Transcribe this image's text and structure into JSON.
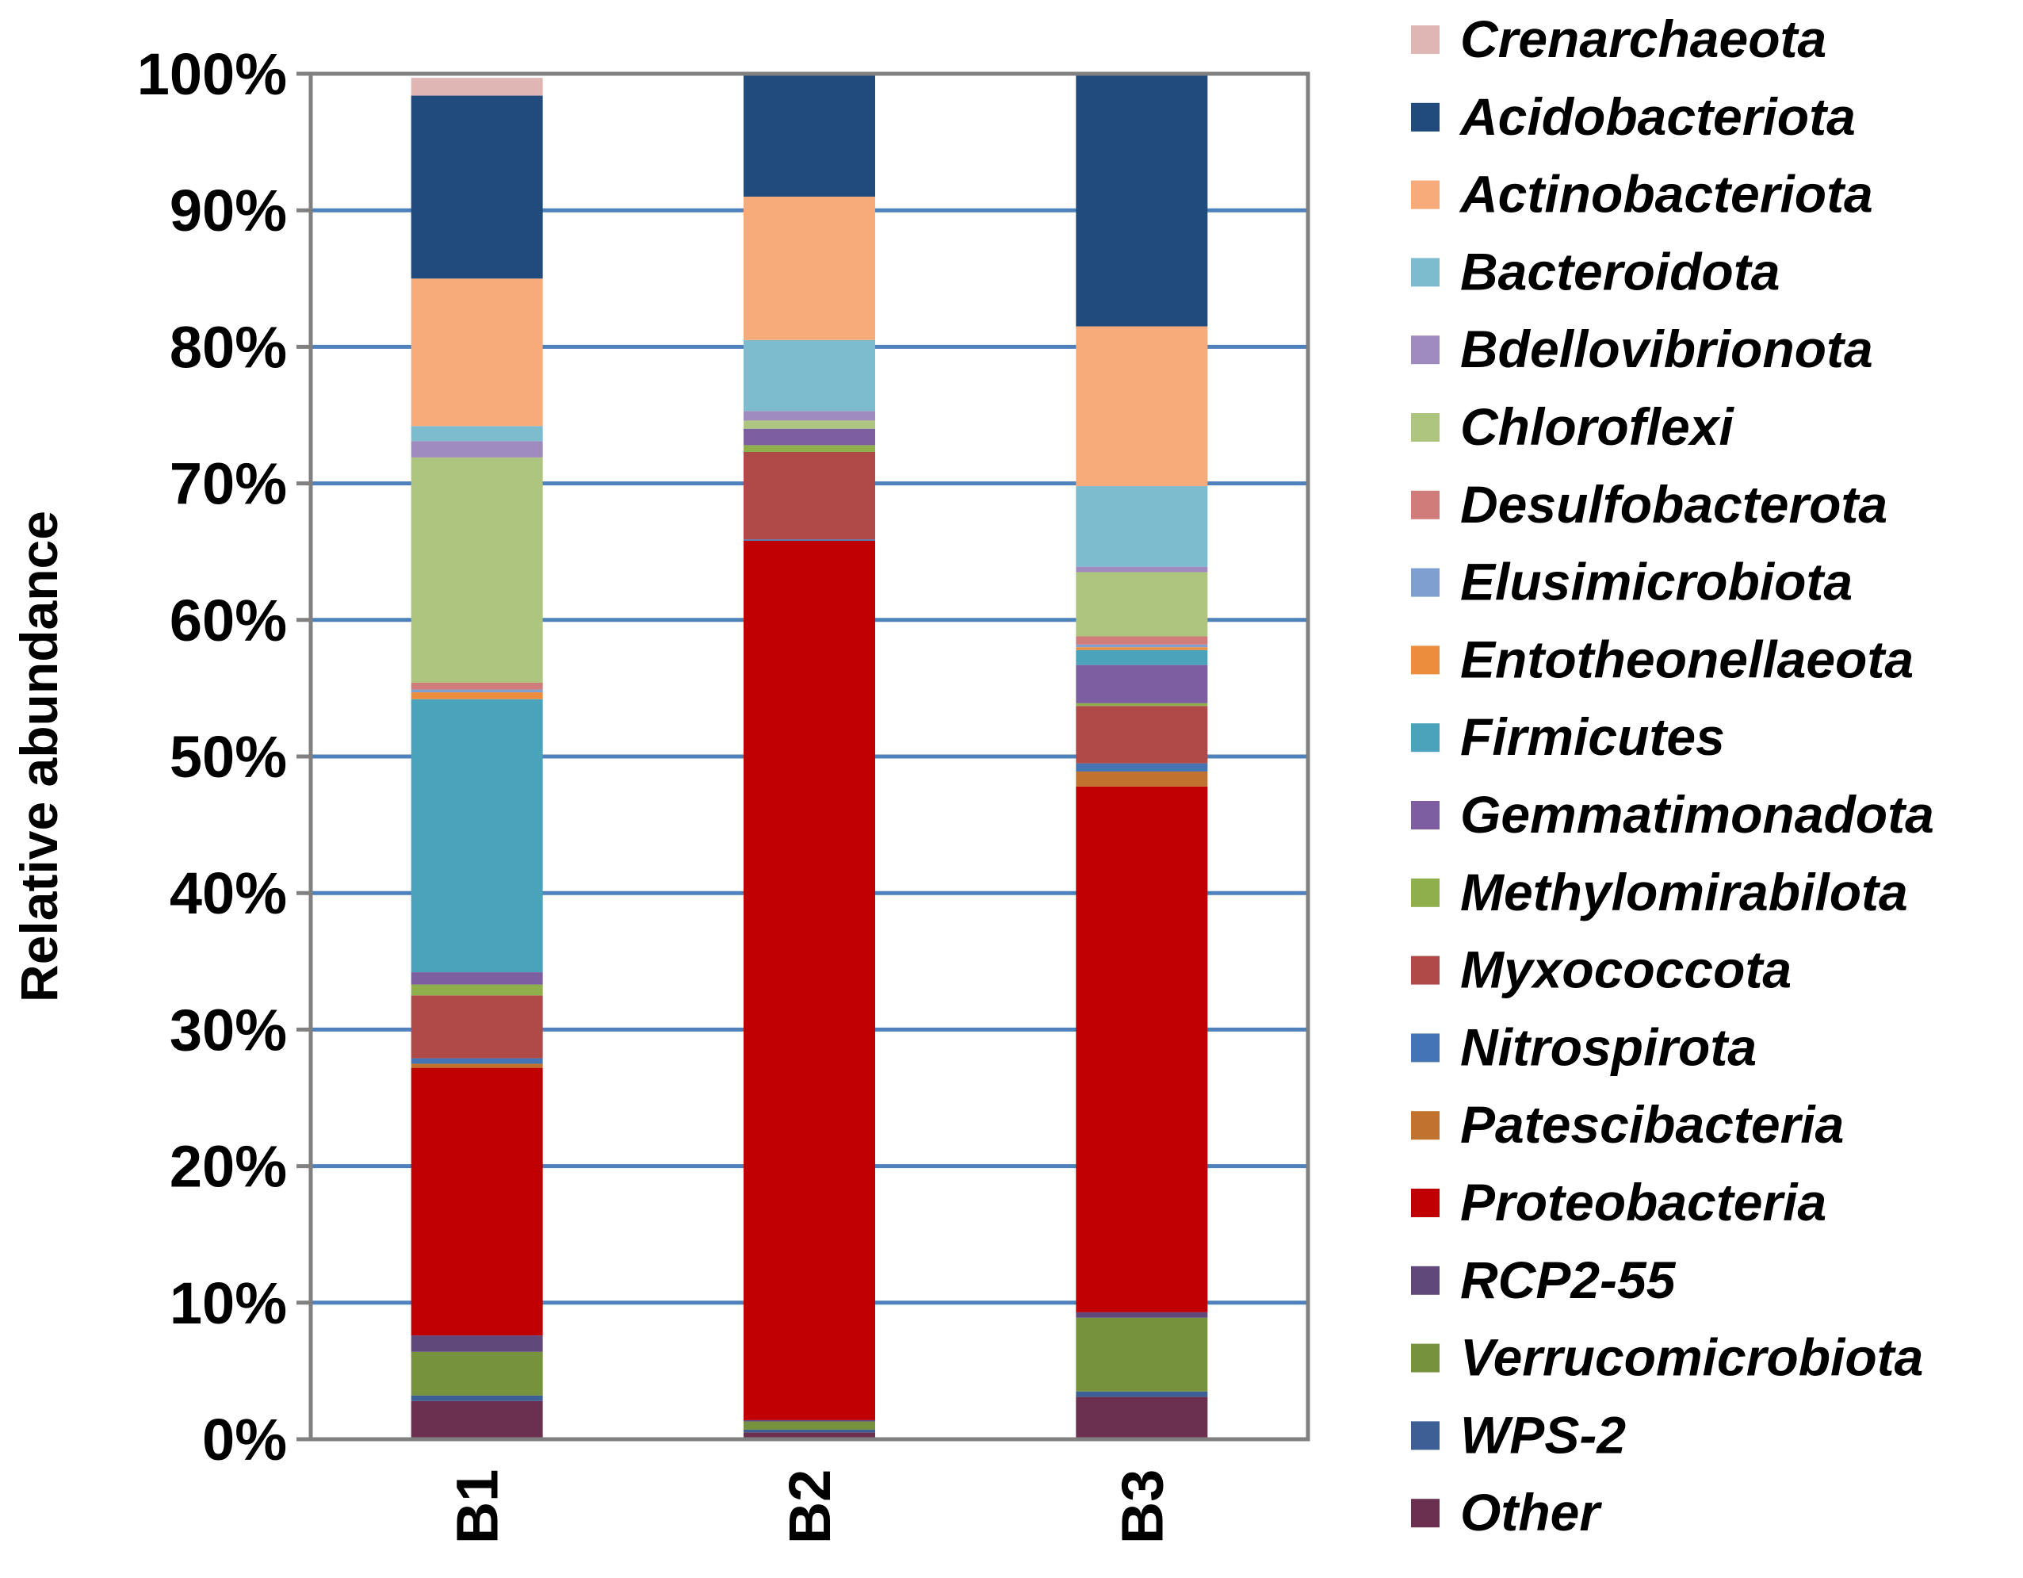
{
  "chart_data": {
    "type": "stacked-bar",
    "title": "",
    "xlabel": "",
    "ylabel": "Relative abundance",
    "ylim": [
      0,
      100
    ],
    "yticks": [
      "0%",
      "10%",
      "20%",
      "30%",
      "40%",
      "50%",
      "60%",
      "70%",
      "80%",
      "90%",
      "100%"
    ],
    "grid": true,
    "legend_position": "right",
    "categories": [
      "B1",
      "B2",
      "B3"
    ],
    "series": [
      {
        "name": "Other",
        "color": "#6B3050",
        "values": [
          2.8,
          0.5,
          3.1
        ]
      },
      {
        "name": "WPS-2",
        "color": "#3D5F95",
        "values": [
          0.4,
          0.2,
          0.4
        ]
      },
      {
        "name": "Verrucomicrobiota",
        "color": "#77923C",
        "values": [
          3.2,
          0.6,
          5.4
        ]
      },
      {
        "name": "RCP2-55",
        "color": "#60497A",
        "values": [
          1.2,
          0.1,
          0.4
        ]
      },
      {
        "name": "Proteobacteria",
        "color": "#C00000",
        "values": [
          19.6,
          64.4,
          38.5
        ]
      },
      {
        "name": "Patescibacteria",
        "color": "#C0722E",
        "values": [
          0.3,
          0.0,
          1.1
        ]
      },
      {
        "name": "Nitrospirota",
        "color": "#4574B4",
        "values": [
          0.4,
          0.1,
          0.6
        ]
      },
      {
        "name": "Myxococcota",
        "color": "#B04A48",
        "values": [
          4.6,
          6.4,
          4.2
        ]
      },
      {
        "name": "Methylomirabilota",
        "color": "#8FAE4C",
        "values": [
          0.8,
          0.5,
          0.2
        ]
      },
      {
        "name": "Gemmatimonadota",
        "color": "#7D5EA0",
        "values": [
          0.9,
          1.2,
          2.8
        ]
      },
      {
        "name": "Firmicutes",
        "color": "#4AA3BA",
        "values": [
          20.0,
          0.0,
          1.1
        ]
      },
      {
        "name": "Entotheonellaeota",
        "color": "#EB8D3C",
        "values": [
          0.5,
          0.0,
          0.2
        ]
      },
      {
        "name": "Elusimicrobiota",
        "color": "#7E9FCF",
        "values": [
          0.2,
          0.0,
          0.2
        ]
      },
      {
        "name": "Desulfobacterota",
        "color": "#D07C7A",
        "values": [
          0.5,
          0.0,
          0.6
        ]
      },
      {
        "name": "Chloroflexi",
        "color": "#ADC57E",
        "values": [
          16.5,
          0.6,
          4.7
        ]
      },
      {
        "name": "Bdellovibrionota",
        "color": "#A08BBE",
        "values": [
          1.2,
          0.7,
          0.4
        ]
      },
      {
        "name": "Bacteroidota",
        "color": "#7DBBCF",
        "values": [
          1.1,
          5.2,
          5.9
        ]
      },
      {
        "name": "Actinobacteriota",
        "color": "#F7AA7A",
        "values": [
          10.8,
          10.5,
          11.7
        ]
      },
      {
        "name": "Acidobacteriota",
        "color": "#214B7D",
        "values": [
          13.4,
          9.0,
          18.5
        ]
      },
      {
        "name": "Crenarchaeota",
        "color": "#E0B6B4",
        "values": [
          1.3,
          0.0,
          0.0
        ]
      }
    ]
  }
}
